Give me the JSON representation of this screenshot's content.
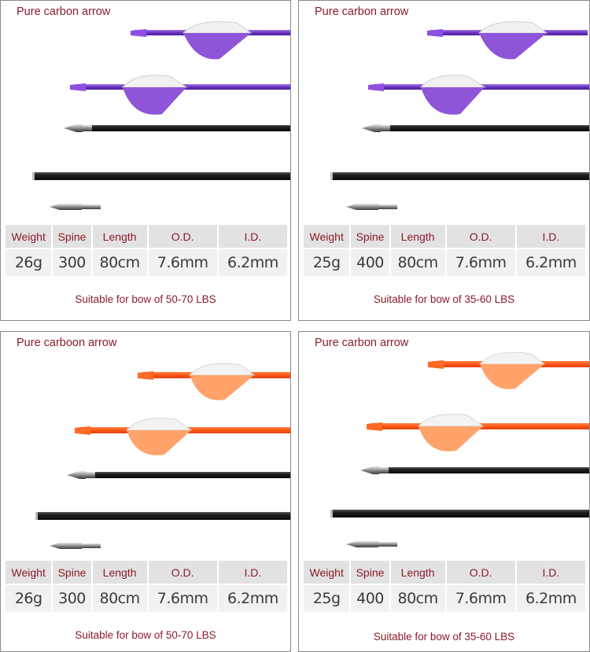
{
  "colors": {
    "accent_text": "#8b1c2a",
    "purple": "#7b3fc7",
    "purple_vane": "#8f55d9",
    "orange": "#ff5a14",
    "orange_vane": "#ff9a5c",
    "carbon": "#2a2a2a"
  },
  "columns": [
    "Weight",
    "Spine",
    "Length",
    "O.D.",
    "I.D."
  ],
  "panels": [
    {
      "title": "Pure carbon arrow",
      "color": "purple",
      "values": [
        "26g",
        "300",
        "80cm",
        "7.6mm",
        "6.2mm"
      ],
      "suitable": "Suitable for bow of 50-70 LBS"
    },
    {
      "title": "Pure carbon arrow",
      "color": "purple",
      "values": [
        "25g",
        "400",
        "80cm",
        "7.6mm",
        "6.2mm"
      ],
      "suitable": "Suitable for bow of 35-60 LBS"
    },
    {
      "title": "Pure carboon arrow",
      "color": "orange",
      "values": [
        "26g",
        "300",
        "80cm",
        "7.6mm",
        "6.2mm"
      ],
      "suitable": "Suitable for bow of 50-70 LBS"
    },
    {
      "title": "Pure carbon arrow",
      "color": "orange",
      "values": [
        "25g",
        "400",
        "80cm",
        "7.6mm",
        "6.2mm"
      ],
      "suitable": "Suitable for bow of 35-60 LBS"
    }
  ]
}
